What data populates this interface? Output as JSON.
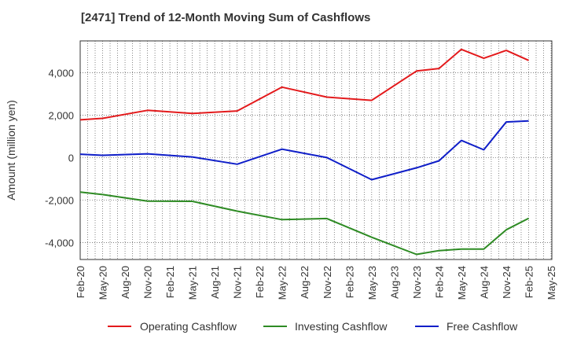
{
  "chart_data": {
    "type": "line",
    "title": "[2471]  Trend of 12-Month Moving Sum of Cashflows",
    "xlabel": "",
    "ylabel": "Amount (million yen)",
    "x_ticks": [
      "Feb-20",
      "May-20",
      "Aug-20",
      "Nov-20",
      "Feb-21",
      "May-21",
      "Aug-21",
      "Nov-21",
      "Feb-22",
      "May-22",
      "Aug-22",
      "Nov-22",
      "Feb-23",
      "May-23",
      "Aug-23",
      "Nov-23",
      "Feb-24",
      "May-24",
      "Aug-24",
      "Nov-24",
      "Feb-25",
      "May-25"
    ],
    "y_ticks": [
      4000,
      2000,
      0,
      -2000,
      -4000
    ],
    "y_tick_labels": [
      "4,000",
      "2,000",
      "0",
      "-2,000",
      "-4,000"
    ],
    "ylim": [
      -4800,
      5500
    ],
    "grid": true,
    "legend_position": "bottom",
    "x": [
      "Feb-20",
      "May-20",
      "Nov-20",
      "May-21",
      "Nov-21",
      "May-22",
      "Nov-22",
      "May-23",
      "Nov-23",
      "Feb-24",
      "May-24",
      "Aug-24",
      "Nov-24",
      "Feb-25"
    ],
    "series": [
      {
        "name": "Operating Cashflow",
        "color": "#e31a1c",
        "values": [
          1780,
          1850,
          2230,
          2080,
          2200,
          3320,
          2850,
          2700,
          4080,
          4200,
          5100,
          4680,
          5050,
          4580
        ]
      },
      {
        "name": "Investing Cashflow",
        "color": "#2e8b24",
        "values": [
          -1620,
          -1740,
          -2050,
          -2060,
          -2520,
          -2920,
          -2870,
          -3750,
          -4560,
          -4380,
          -4310,
          -4310,
          -3400,
          -2860
        ]
      },
      {
        "name": "Free Cashflow",
        "color": "#0f1ec8",
        "values": [
          160,
          110,
          180,
          30,
          -310,
          400,
          0,
          -1040,
          -480,
          -150,
          810,
          370,
          1680,
          1730
        ]
      }
    ]
  }
}
